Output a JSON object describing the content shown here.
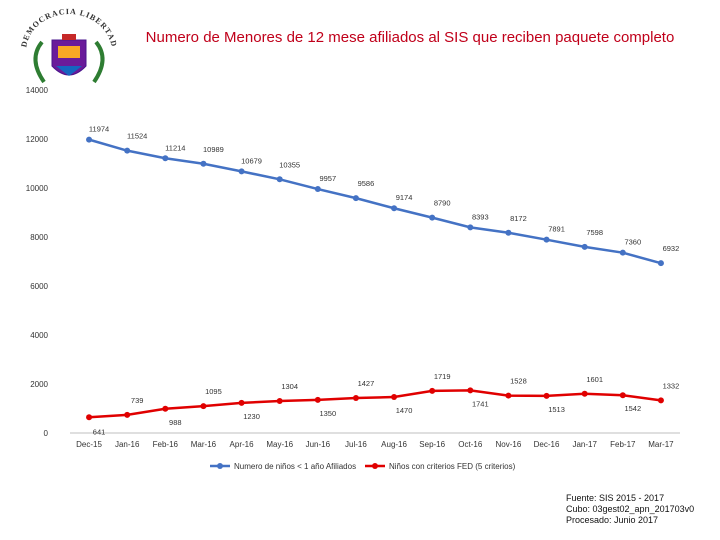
{
  "title": "Numero de Menores de 12 mese afiliados al SIS que reciben paquete completo",
  "colors": {
    "series1": "#4472c4",
    "series2": "#e00000",
    "title": "#c0001a"
  },
  "logo": {
    "text": "DEMOCRACIA LIBERTAD",
    "icon": "regional-coat-of-arms-icon"
  },
  "source": [
    "Fuente: SIS 2015 - 2017",
    "Cubo: 03gest02_apn_201703v0",
    "Procesado: Junio 2017"
  ],
  "chart_data": {
    "type": "line",
    "categories": [
      "Dec-15",
      "Jan-16",
      "Feb-16",
      "Mar-16",
      "Apr-16",
      "May-16",
      "Jun-16",
      "Jul-16",
      "Aug-16",
      "Sep-16",
      "Oct-16",
      "Nov-16",
      "Dec-16",
      "Jan-17",
      "Feb-17",
      "Mar-17"
    ],
    "ylim": [
      0,
      14000
    ],
    "yticks": [
      0,
      2000,
      4000,
      6000,
      8000,
      10000,
      12000,
      14000
    ],
    "grid": false,
    "legend_position": "bottom",
    "series": [
      {
        "name": "Numero de niños < 1 año Afiliados",
        "values": [
          11974,
          11524,
          11214,
          10989,
          10679,
          10355,
          9957,
          9586,
          9174,
          8790,
          8393,
          8172,
          7891,
          7598,
          7360,
          6932
        ]
      },
      {
        "name": "Niños con criterios  FED (5 criterios)",
        "values": [
          641,
          739,
          988,
          1095,
          1230,
          1304,
          1350,
          1427,
          1470,
          1719,
          1741,
          1528,
          1513,
          1601,
          1542,
          1332
        ]
      }
    ]
  }
}
